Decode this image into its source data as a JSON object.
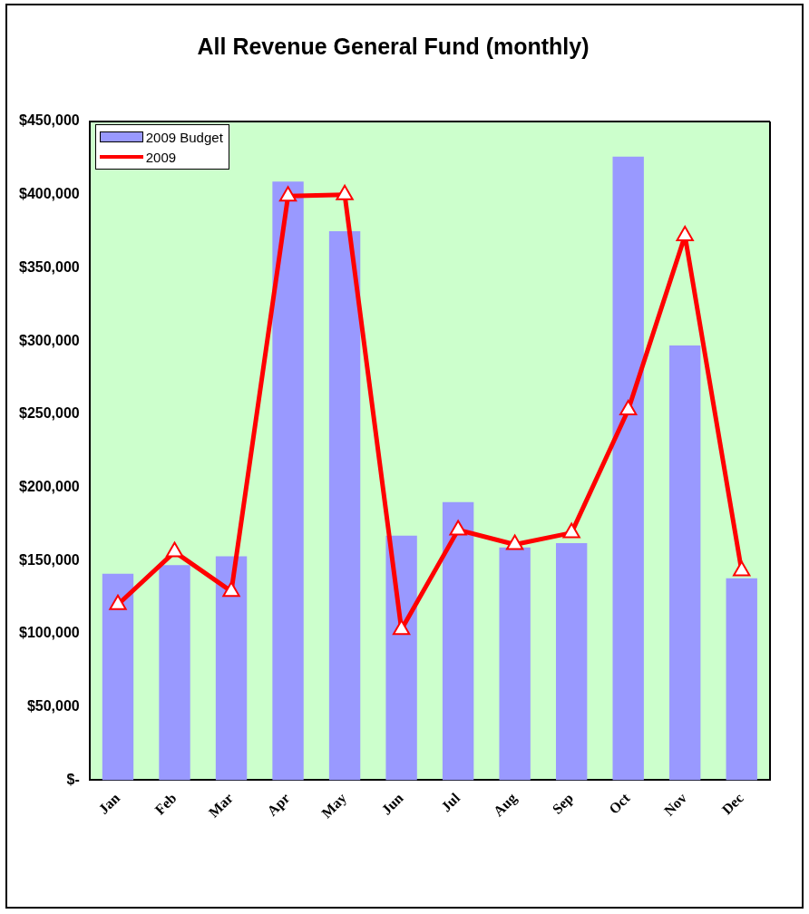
{
  "chart_data": {
    "type": "bar",
    "title": "All Revenue General Fund (monthly)",
    "categories": [
      "Jan",
      "Feb",
      "Mar",
      "Apr",
      "May",
      "Jun",
      "Jul",
      "Aug",
      "Sep",
      "Oct",
      "Nov",
      "Dec"
    ],
    "series": [
      {
        "name": "2009 Budget",
        "color": "#9999ff",
        "values": [
          141000,
          147000,
          153000,
          409000,
          375000,
          167000,
          190000,
          159000,
          162000,
          426000,
          297000,
          138000
        ]
      },
      {
        "name": "2009",
        "type": "line",
        "color": "#ff0000",
        "values": [
          120000,
          156000,
          129000,
          399000,
          400000,
          103000,
          171000,
          161000,
          169000,
          253000,
          372000,
          143000
        ]
      }
    ],
    "ylim": [
      0,
      450000
    ],
    "yticks": [
      {
        "value": 0,
        "label": "$-"
      },
      {
        "value": 50000,
        "label": "$50,000"
      },
      {
        "value": 100000,
        "label": "$100,000"
      },
      {
        "value": 150000,
        "label": "$150,000"
      },
      {
        "value": 200000,
        "label": "$200,000"
      },
      {
        "value": 250000,
        "label": "$250,000"
      },
      {
        "value": 300000,
        "label": "$300,000"
      },
      {
        "value": 350000,
        "label": "$350,000"
      },
      {
        "value": 400000,
        "label": "$400,000"
      },
      {
        "value": 450000,
        "label": "$450,000"
      }
    ],
    "legend": "top left",
    "marker": "triangle",
    "line_style": "solid",
    "grid": false
  }
}
